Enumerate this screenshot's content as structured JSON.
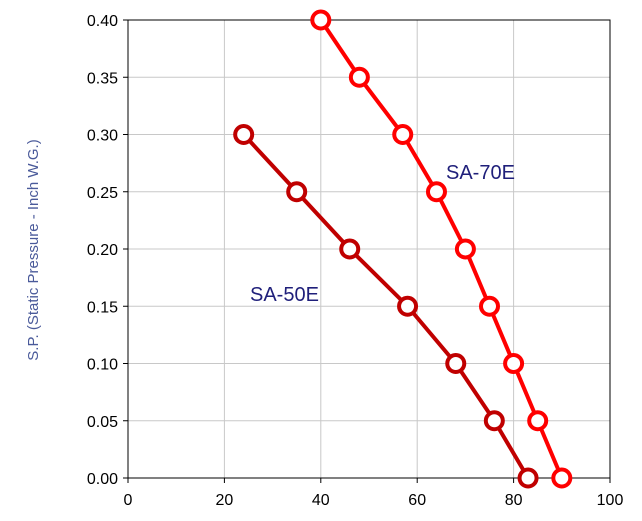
{
  "chart_data": {
    "type": "line",
    "ylabel": "S.P. (Static Pressure - Inch W.G.)",
    "xlabel": "",
    "xlim": [
      0,
      100
    ],
    "ylim": [
      0,
      0.4
    ],
    "x_ticks": [
      "0",
      "20",
      "40",
      "60",
      "80",
      "100"
    ],
    "y_ticks": [
      "0.00",
      "0.05",
      "0.10",
      "0.15",
      "0.20",
      "0.25",
      "0.30",
      "0.35",
      "0.40"
    ],
    "grid": true,
    "legend": "none",
    "series": [
      {
        "name": "SA-50E",
        "color": "#c00000",
        "label_color": "#1f1f7a",
        "points": [
          [
            24,
            0.3
          ],
          [
            35,
            0.25
          ],
          [
            46,
            0.2
          ],
          [
            58,
            0.15
          ],
          [
            68,
            0.1
          ],
          [
            76,
            0.05
          ],
          [
            83,
            0.0
          ]
        ]
      },
      {
        "name": "SA-70E",
        "color": "#ff0000",
        "label_color": "#1f1f7a",
        "points": [
          [
            40,
            0.4
          ],
          [
            48,
            0.35
          ],
          [
            57,
            0.3
          ],
          [
            64,
            0.25
          ],
          [
            70,
            0.2
          ],
          [
            75,
            0.15
          ],
          [
            80,
            0.1
          ],
          [
            85,
            0.05
          ],
          [
            90,
            0.0
          ]
        ]
      }
    ],
    "axis_title_color": "#4a5a9a",
    "grid_color": "#c8c8c8",
    "plot_border_color": "#000000"
  }
}
